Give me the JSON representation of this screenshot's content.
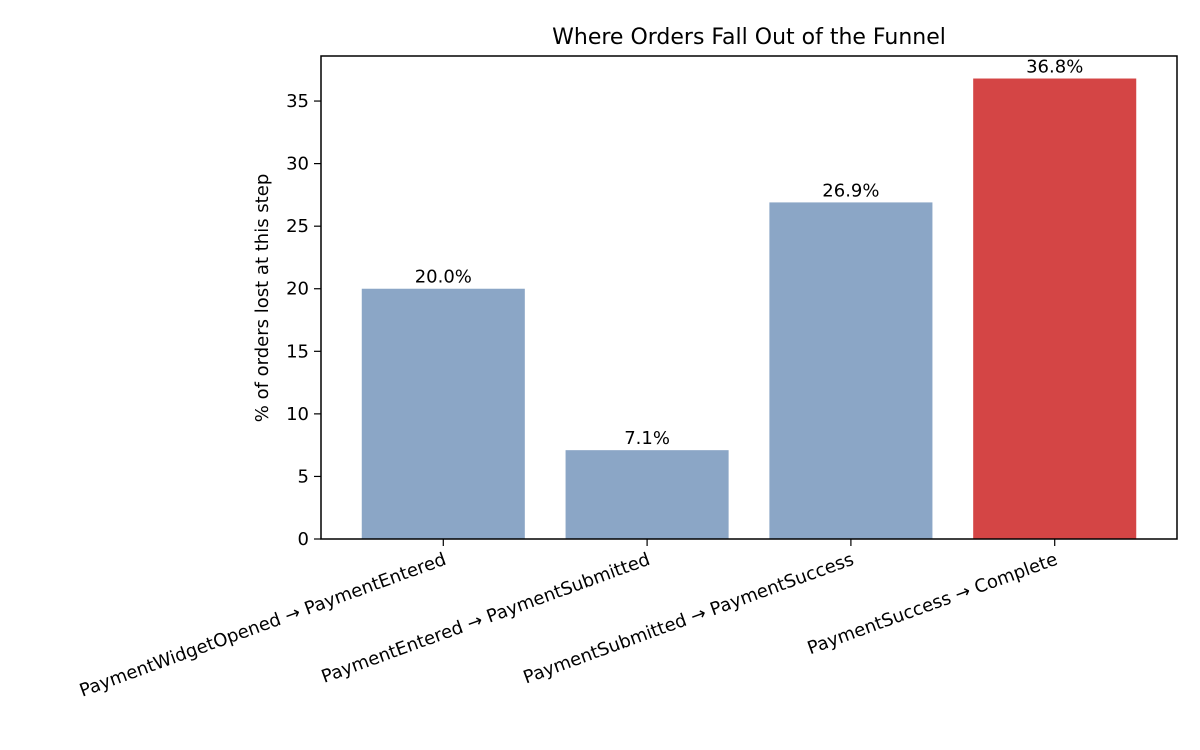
{
  "chart_data": {
    "type": "bar",
    "title": "Where Orders Fall Out of the Funnel",
    "xlabel": "",
    "ylabel": "% of orders lost at this step",
    "categories": [
      "PaymentWidgetOpened → PaymentEntered",
      "PaymentEntered → PaymentSubmitted",
      "PaymentSubmitted → PaymentSuccess",
      "PaymentSuccess → Complete"
    ],
    "values": [
      20.0,
      7.1,
      26.9,
      36.8
    ],
    "value_labels": [
      "20.0%",
      "7.1%",
      "26.9%",
      "36.8%"
    ],
    "bar_colors": [
      "#8ba6c6",
      "#8ba6c6",
      "#8ba6c6",
      "#d44545"
    ],
    "ylim": [
      0,
      38.6
    ],
    "yticks": [
      0,
      5,
      10,
      15,
      20,
      25,
      30,
      35
    ],
    "grid": false,
    "legend": "none"
  }
}
